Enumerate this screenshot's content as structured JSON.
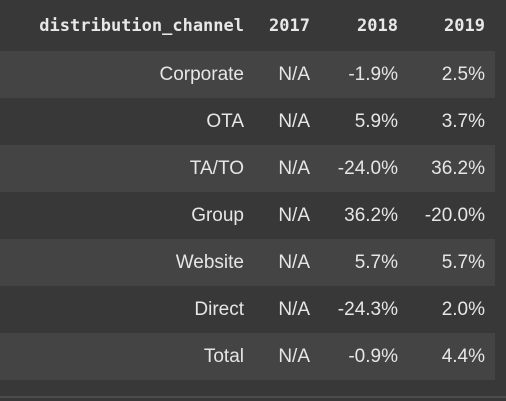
{
  "table": {
    "columns": [
      "distribution_channel",
      "2017",
      "2018",
      "2019"
    ],
    "rows": [
      {
        "channel": "Corporate",
        "y2017": "N/A",
        "y2018": "-1.9%",
        "y2019": "2.5%"
      },
      {
        "channel": "OTA",
        "y2017": "N/A",
        "y2018": "5.9%",
        "y2019": "3.7%"
      },
      {
        "channel": "TA/TO",
        "y2017": "N/A",
        "y2018": "-24.0%",
        "y2019": "36.2%"
      },
      {
        "channel": "Group",
        "y2017": "N/A",
        "y2018": "36.2%",
        "y2019": "-20.0%"
      },
      {
        "channel": "Website",
        "y2017": "N/A",
        "y2018": "5.7%",
        "y2019": "5.7%"
      },
      {
        "channel": "Direct",
        "y2017": "N/A",
        "y2018": "-24.3%",
        "y2019": "2.0%"
      },
      {
        "channel": "Total",
        "y2017": "N/A",
        "y2018": "-0.9%",
        "y2019": "4.4%"
      }
    ]
  },
  "colors": {
    "background": "#383838",
    "row_stripe": "#444444",
    "text": "#e6e6e6"
  }
}
